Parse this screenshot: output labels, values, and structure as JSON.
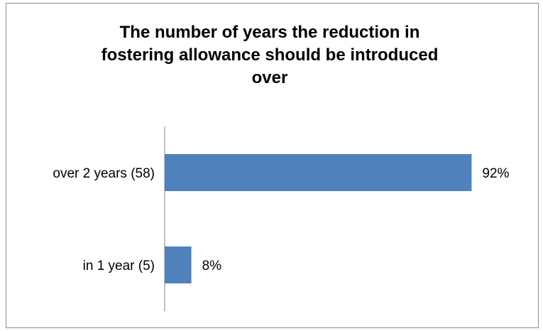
{
  "chart_data": {
    "type": "bar",
    "orientation": "horizontal",
    "title_lines": [
      "The number of years the reduction in",
      "fostering allowance should be introduced",
      "over"
    ],
    "categories": [
      "over 2 years (58)",
      "in 1 year (5)"
    ],
    "values": [
      92,
      8
    ],
    "data_labels": [
      "92%",
      "8%"
    ],
    "xlim": [
      0,
      100
    ],
    "bar_color": "#4f81bd",
    "legend": false,
    "grid": false
  }
}
